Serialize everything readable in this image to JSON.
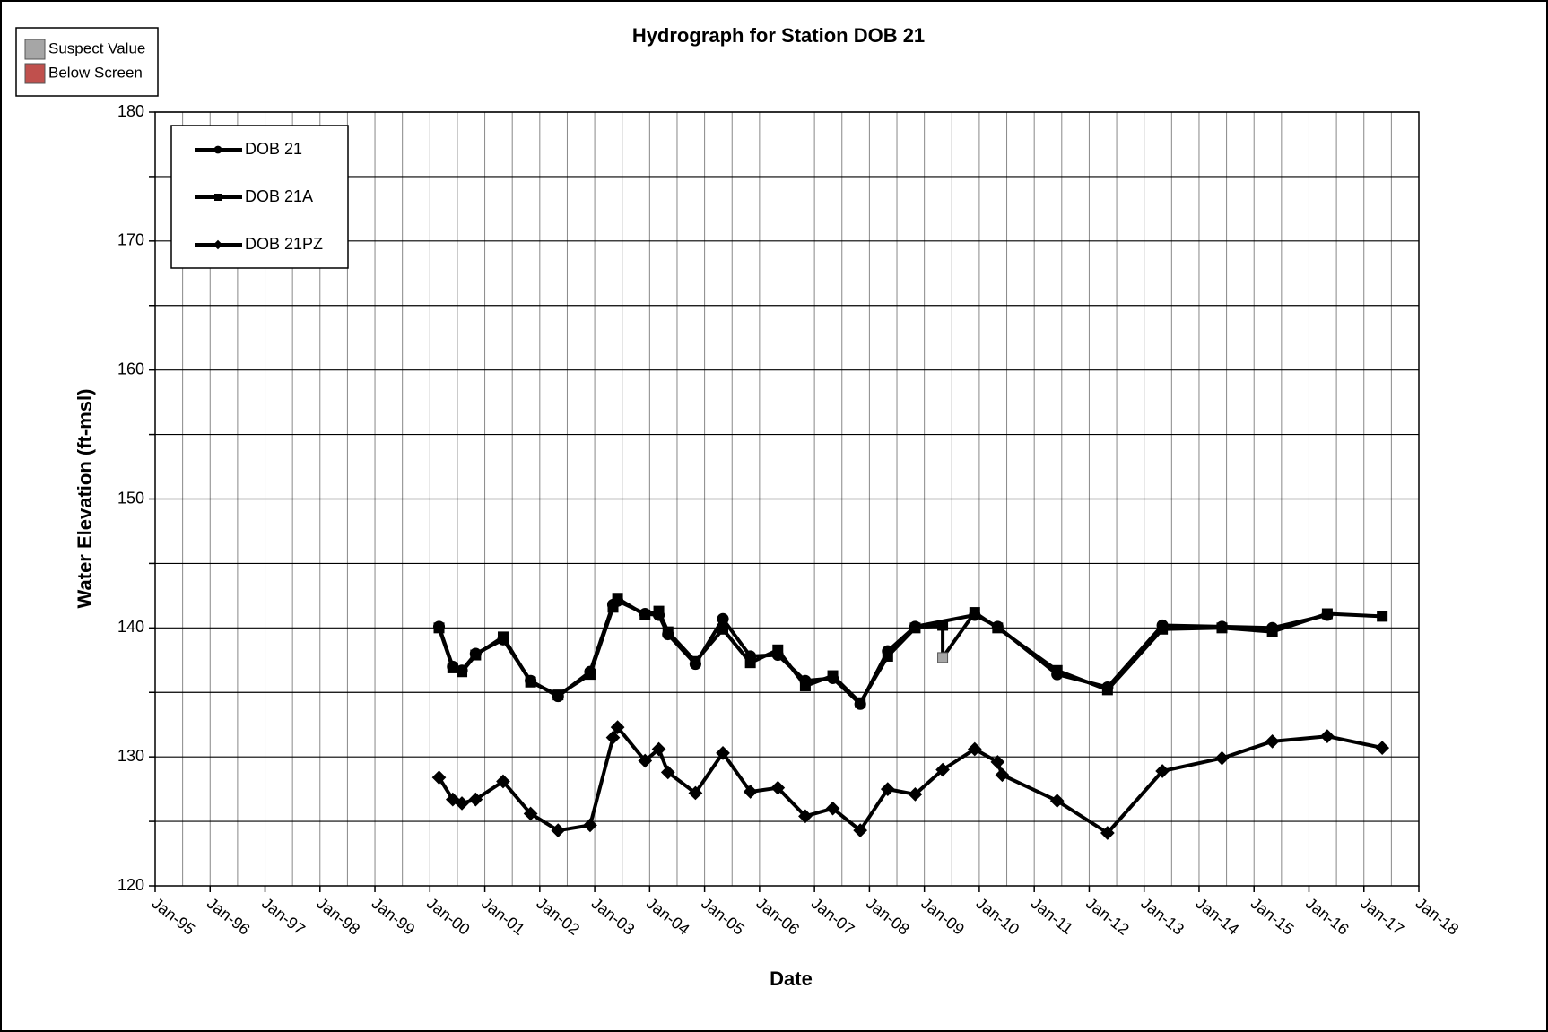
{
  "chart_data": {
    "type": "line",
    "title": "Hydrograph for Station DOB 21",
    "x_label": "Date",
    "y_label": "Water Elevation (ft-msl)",
    "xlim": [
      "1995-01",
      "2018-01"
    ],
    "xticks": [
      {
        "value": "1995-01",
        "label": "Jan-95"
      },
      {
        "value": "1996-01",
        "label": "Jan-96"
      },
      {
        "value": "1997-01",
        "label": "Jan-97"
      },
      {
        "value": "1998-01",
        "label": "Jan-98"
      },
      {
        "value": "1999-01",
        "label": "Jan-99"
      },
      {
        "value": "2000-01",
        "label": "Jan-00"
      },
      {
        "value": "2001-01",
        "label": "Jan-01"
      },
      {
        "value": "2002-01",
        "label": "Jan-02"
      },
      {
        "value": "2003-01",
        "label": "Jan-03"
      },
      {
        "value": "2004-01",
        "label": "Jan-04"
      },
      {
        "value": "2005-01",
        "label": "Jan-05"
      },
      {
        "value": "2006-01",
        "label": "Jan-06"
      },
      {
        "value": "2007-01",
        "label": "Jan-07"
      },
      {
        "value": "2008-01",
        "label": "Jan-08"
      },
      {
        "value": "2009-01",
        "label": "Jan-09"
      },
      {
        "value": "2010-01",
        "label": "Jan-10"
      },
      {
        "value": "2011-01",
        "label": "Jan-11"
      },
      {
        "value": "2012-01",
        "label": "Jan-12"
      },
      {
        "value": "2013-01",
        "label": "Jan-13"
      },
      {
        "value": "2014-01",
        "label": "Jan-14"
      },
      {
        "value": "2015-01",
        "label": "Jan-15"
      },
      {
        "value": "2016-01",
        "label": "Jan-16"
      },
      {
        "value": "2017-01",
        "label": "Jan-17"
      },
      {
        "value": "2018-01",
        "label": "Jan-18"
      }
    ],
    "ylim": [
      120,
      180
    ],
    "yticks": [
      120,
      130,
      140,
      150,
      160,
      170,
      180
    ],
    "grid": true,
    "flags": [
      {
        "name": "Suspect Value",
        "color": "#a6a6a6"
      },
      {
        "name": "Below Screen",
        "color": "#c0504d"
      }
    ],
    "series": [
      {
        "name": "DOB 21",
        "color": "#000000",
        "marker": "circle",
        "x": [
          "2000-03",
          "2000-06",
          "2000-08",
          "2000-11",
          "2001-05",
          "2001-11",
          "2002-05",
          "2002-12",
          "2003-05",
          "2003-06",
          "2003-12",
          "2004-03",
          "2004-05",
          "2004-11",
          "2005-05",
          "2005-11",
          "2006-05",
          "2006-11",
          "2007-05",
          "2007-11",
          "2008-05",
          "2008-11",
          "2009-12",
          "2010-05",
          "2011-06",
          "2012-05",
          "2013-05",
          "2014-06",
          "2015-05",
          "2016-05"
        ],
        "values": [
          140.1,
          137.0,
          136.7,
          138.0,
          139.1,
          135.9,
          134.7,
          136.6,
          141.8,
          142.1,
          141.1,
          141.0,
          139.5,
          137.2,
          140.7,
          137.8,
          137.9,
          135.9,
          136.1,
          134.1,
          138.2,
          140.1,
          141.0,
          140.1,
          136.4,
          135.4,
          140.2,
          140.1,
          140.0,
          141.0
        ]
      },
      {
        "name": "DOB 21A",
        "color": "#000000",
        "marker": "square",
        "x": [
          "2000-03",
          "2000-06",
          "2000-08",
          "2000-11",
          "2001-05",
          "2001-11",
          "2002-05",
          "2002-12",
          "2003-05",
          "2003-06",
          "2003-12",
          "2004-03",
          "2004-05",
          "2004-11",
          "2005-05",
          "2005-11",
          "2006-05",
          "2006-11",
          "2007-05",
          "2007-11",
          "2008-05",
          "2008-11",
          "2009-05",
          "2009-05",
          "2009-12",
          "2010-05",
          "2011-06",
          "2012-05",
          "2013-05",
          "2014-06",
          "2015-05",
          "2016-05",
          "2017-05"
        ],
        "values": [
          140.0,
          136.9,
          136.6,
          137.9,
          139.3,
          135.8,
          134.8,
          136.4,
          141.6,
          142.3,
          141.0,
          141.3,
          139.7,
          137.4,
          139.9,
          137.3,
          138.3,
          135.5,
          136.3,
          134.2,
          137.8,
          140.0,
          140.2,
          137.7,
          141.2,
          140.0,
          136.7,
          135.2,
          139.9,
          140.0,
          139.7,
          141.1,
          140.9
        ],
        "flagged": [
          {
            "index": 23,
            "flag": 0
          }
        ]
      },
      {
        "name": "DOB 21PZ",
        "color": "#000000",
        "marker": "diamond",
        "x": [
          "2000-03",
          "2000-06",
          "2000-08",
          "2000-11",
          "2001-05",
          "2001-11",
          "2002-05",
          "2002-12",
          "2003-05",
          "2003-06",
          "2003-12",
          "2004-03",
          "2004-05",
          "2004-11",
          "2005-05",
          "2005-11",
          "2006-05",
          "2006-11",
          "2007-05",
          "2007-11",
          "2008-05",
          "2008-11",
          "2009-05",
          "2009-12",
          "2010-05",
          "2010-06",
          "2011-06",
          "2012-05",
          "2013-05",
          "2014-06",
          "2015-05",
          "2016-05",
          "2017-05"
        ],
        "values": [
          128.4,
          126.7,
          126.4,
          126.7,
          128.1,
          125.6,
          124.3,
          124.7,
          131.5,
          132.3,
          129.7,
          130.6,
          128.8,
          127.2,
          130.3,
          127.3,
          127.6,
          125.4,
          126.0,
          124.3,
          127.5,
          127.1,
          129.0,
          130.6,
          129.6,
          128.6,
          126.6,
          124.1,
          128.9,
          129.9,
          131.2,
          131.6,
          130.7
        ]
      }
    ]
  }
}
